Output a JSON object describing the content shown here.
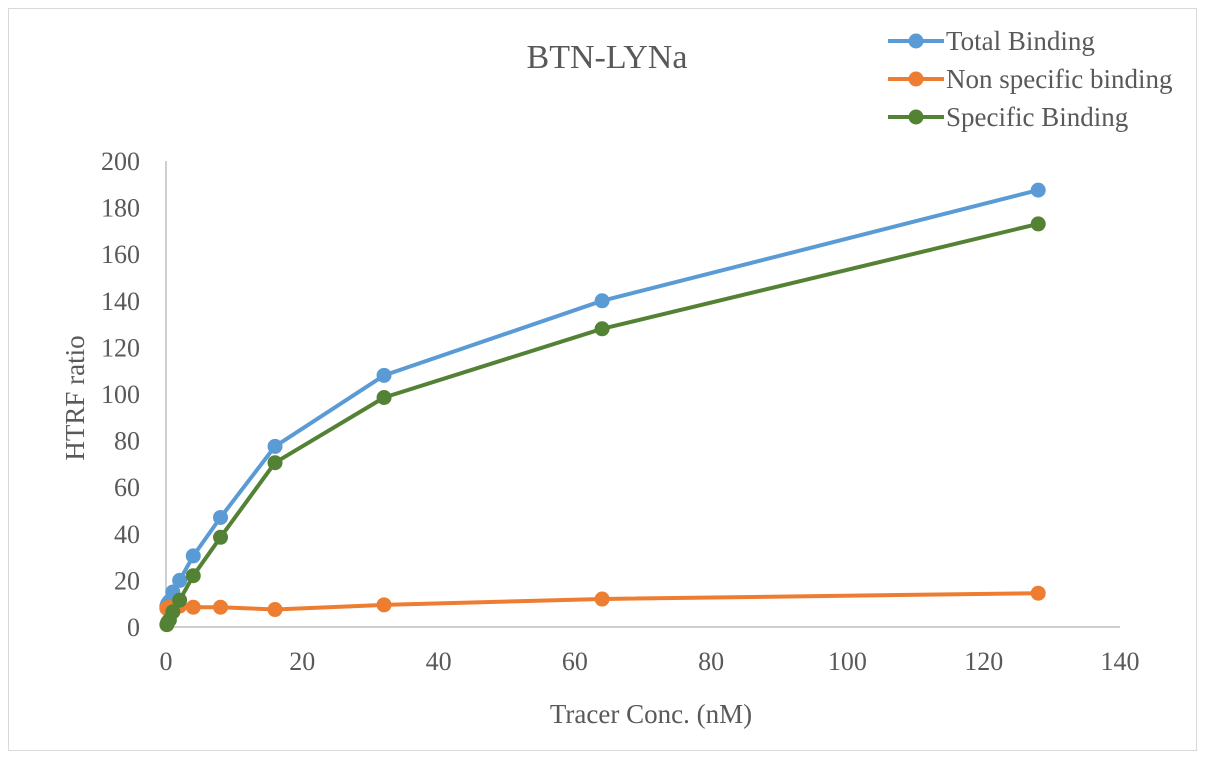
{
  "chart_data": {
    "type": "line",
    "title": "BTN-LYNa",
    "xlabel": "Tracer Conc. (nM)",
    "ylabel": "HTRF ratio",
    "xlim": [
      0,
      140
    ],
    "ylim": [
      0,
      200
    ],
    "x_ticks": [
      0,
      20,
      40,
      60,
      80,
      100,
      120,
      140
    ],
    "y_ticks": [
      0,
      20,
      40,
      60,
      80,
      100,
      120,
      140,
      160,
      180,
      200
    ],
    "grid": false,
    "legend_position": "top-right",
    "series": [
      {
        "name": "Total Binding",
        "color": "#5b9bd5",
        "x": [
          0.125,
          0.25,
          0.5,
          1,
          2,
          4,
          8,
          16,
          32,
          64,
          128
        ],
        "y": [
          9,
          10,
          11,
          15,
          20,
          30.5,
          47,
          77.5,
          108,
          140,
          187.5
        ]
      },
      {
        "name": "Non specific binding",
        "color": "#ed7d31",
        "x": [
          0.125,
          0.25,
          0.5,
          1,
          2,
          4,
          8,
          16,
          32,
          64,
          128
        ],
        "y": [
          8,
          8,
          8.5,
          8.5,
          9,
          8.5,
          8.5,
          7.5,
          9.5,
          12,
          14.5
        ]
      },
      {
        "name": "Specific Binding",
        "color": "#548235",
        "x": [
          0.125,
          0.25,
          0.5,
          1,
          2,
          4,
          8,
          16,
          32,
          64,
          128
        ],
        "y": [
          1,
          2,
          3,
          6.5,
          11.5,
          22,
          38.5,
          70.5,
          98.5,
          128,
          173
        ]
      }
    ]
  }
}
